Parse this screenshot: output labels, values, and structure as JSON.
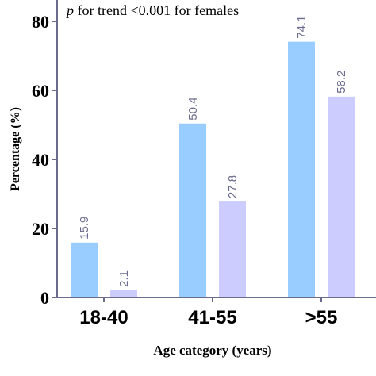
{
  "chart_data": {
    "type": "bar",
    "annotation": {
      "italic_prefix": "p",
      "text": " for trend <0.001 for females"
    },
    "categories": [
      "18-40",
      "41-55",
      ">55"
    ],
    "series": [
      {
        "values": [
          15.9,
          50.4,
          74.1
        ],
        "color": "#99ccff"
      },
      {
        "values": [
          2.1,
          27.8,
          58.2
        ],
        "color": "#ccccff"
      }
    ],
    "value_labels": [
      [
        "15.9",
        "50.4",
        "74.1"
      ],
      [
        "2.1",
        "27.8",
        "58.2"
      ]
    ],
    "ylabel": "Percentage (%)",
    "xlabel": "Age category (years)",
    "ylim": [
      0,
      80
    ],
    "yticks": [
      0,
      20,
      40,
      60,
      80
    ],
    "ytick_labels": [
      "0",
      "20",
      "40",
      "60",
      "80"
    ],
    "grid": false,
    "axis_color": "#6b6b8e",
    "value_label_color": "#6b6b8e"
  }
}
